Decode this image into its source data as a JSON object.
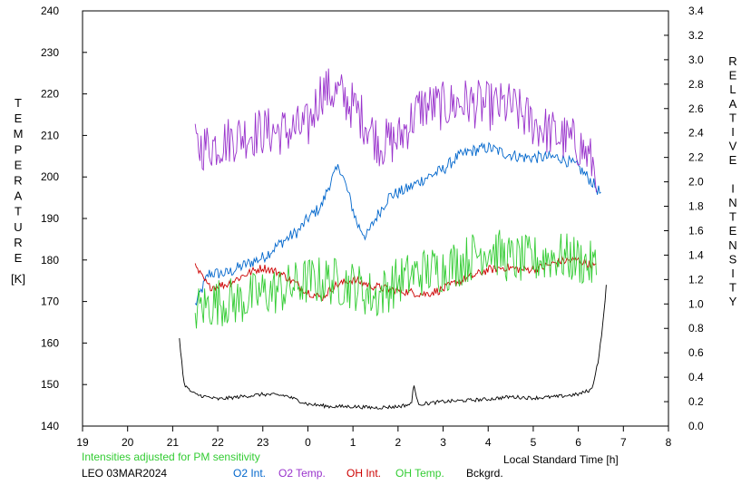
{
  "chart_data": {
    "type": "line",
    "title": "",
    "xlabel": "Local Standard Time [h]",
    "ylabel_left": "TEMPERATURE",
    "ylabel_left_unit": "[K]",
    "ylabel_right": "RELATIVE INTENSITY",
    "x_ticks": [
      "19",
      "20",
      "21",
      "22",
      "23",
      "0",
      "1",
      "2",
      "3",
      "4",
      "5",
      "6",
      "7",
      "8"
    ],
    "xlim": [
      19,
      32
    ],
    "ylim_left": [
      140,
      240
    ],
    "y_ticks_left": [
      "140",
      "150",
      "160",
      "170",
      "180",
      "190",
      "200",
      "210",
      "220",
      "230",
      "240"
    ],
    "ylim_right": [
      0.0,
      3.4
    ],
    "y_ticks_right": [
      "0.0",
      "0.2",
      "0.4",
      "0.6",
      "0.8",
      "1.0",
      "1.2",
      "1.4",
      "1.6",
      "1.8",
      "2.0",
      "2.2",
      "2.4",
      "2.6",
      "2.8",
      "3.0",
      "3.2",
      "3.4"
    ],
    "grid": false,
    "legend_position": "bottom",
    "note": "Intensities adjusted for PM sensitivity",
    "station_date": "LEO 03MAR2024",
    "series": [
      {
        "name": "O2 Int.",
        "color": "#0066cc",
        "axis": "right",
        "noise": 0.05,
        "x": [
          21.5,
          21.8,
          22.2,
          22.6,
          23.0,
          23.4,
          23.8,
          24.0,
          24.3,
          24.5,
          24.7,
          24.9,
          25.1,
          25.3,
          25.5,
          25.8,
          26.2,
          26.6,
          27.0,
          27.3,
          27.6,
          28.0,
          28.4,
          28.8,
          29.2,
          29.6,
          30.0,
          30.3,
          30.5
        ],
        "y": [
          0.99,
          1.25,
          1.25,
          1.32,
          1.38,
          1.5,
          1.6,
          1.7,
          1.8,
          2.0,
          2.13,
          1.9,
          1.65,
          1.55,
          1.7,
          1.88,
          1.94,
          2.03,
          2.1,
          2.2,
          2.25,
          2.28,
          2.23,
          2.2,
          2.2,
          2.2,
          2.12,
          2.0,
          1.9
        ]
      },
      {
        "name": "O2 Temp.",
        "color": "#9933cc",
        "axis": "left",
        "noise": 6,
        "x": [
          21.5,
          22.0,
          22.5,
          23.0,
          23.5,
          24.0,
          24.3,
          24.7,
          25.0,
          25.3,
          25.6,
          26.0,
          26.5,
          27.0,
          27.5,
          28.0,
          28.5,
          29.0,
          29.5,
          30.0,
          30.4
        ],
        "y": [
          207,
          208,
          210,
          211,
          211,
          212,
          221,
          220,
          217,
          213,
          208,
          209,
          217,
          217,
          218,
          217,
          217,
          213,
          210,
          208,
          202
        ]
      },
      {
        "name": "OH Int.",
        "color": "#cc0000",
        "axis": "right",
        "noise": 0.035,
        "x": [
          21.5,
          21.8,
          22.2,
          22.6,
          23.0,
          23.4,
          23.8,
          24.0,
          24.3,
          24.6,
          25.0,
          25.4,
          25.8,
          26.2,
          26.6,
          27.0,
          27.3,
          27.6,
          28.0,
          28.4,
          28.8,
          29.2,
          29.6,
          30.0,
          30.4
        ],
        "y": [
          1.3,
          1.14,
          1.16,
          1.24,
          1.3,
          1.25,
          1.15,
          1.1,
          1.05,
          1.15,
          1.2,
          1.15,
          1.12,
          1.1,
          1.08,
          1.12,
          1.18,
          1.22,
          1.28,
          1.3,
          1.28,
          1.3,
          1.35,
          1.36,
          1.3
        ]
      },
      {
        "name": "OH Temp.",
        "color": "#33cc33",
        "axis": "left",
        "noise": 6,
        "x": [
          21.5,
          22.0,
          22.5,
          23.0,
          23.5,
          24.0,
          24.5,
          25.0,
          25.5,
          26.0,
          26.5,
          27.0,
          27.5,
          28.0,
          28.5,
          29.0,
          29.5,
          30.0,
          30.4
        ],
        "y": [
          168,
          170,
          170,
          172,
          173,
          175,
          175,
          174,
          171,
          175,
          177,
          178,
          180,
          183,
          180,
          180,
          181,
          180,
          178
        ]
      },
      {
        "name": "Bckgrd.",
        "color": "#000000",
        "axis": "right",
        "noise": 0.015,
        "x": [
          21.15,
          21.25,
          21.35,
          21.5,
          22.0,
          22.5,
          23.0,
          23.5,
          24.0,
          24.5,
          25.0,
          25.5,
          26.0,
          26.3,
          26.35,
          26.42,
          26.5,
          27.0,
          27.5,
          28.0,
          28.5,
          29.0,
          29.5,
          30.0,
          30.3,
          30.45,
          30.55,
          30.62
        ],
        "y": [
          0.72,
          0.35,
          0.3,
          0.26,
          0.22,
          0.24,
          0.26,
          0.25,
          0.18,
          0.16,
          0.16,
          0.15,
          0.16,
          0.18,
          0.36,
          0.2,
          0.18,
          0.2,
          0.21,
          0.22,
          0.24,
          0.23,
          0.24,
          0.26,
          0.3,
          0.55,
          0.85,
          1.15
        ]
      }
    ]
  }
}
